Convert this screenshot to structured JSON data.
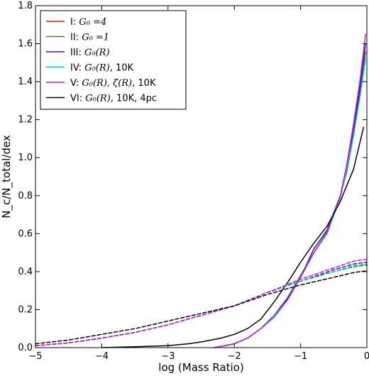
{
  "chart_data": {
    "type": "line",
    "xlabel": "log (Mass Ratio)",
    "ylabel": "N_c/N_total/dex",
    "xlim": [
      -5,
      0
    ],
    "ylim": [
      0,
      1.8
    ],
    "xticks": [
      -5,
      -4,
      -3,
      -2,
      -1,
      0
    ],
    "yticks": [
      0.0,
      0.2,
      0.4,
      0.6,
      0.8,
      1.0,
      1.2,
      1.4,
      1.6,
      1.8
    ],
    "xtick_labels": [
      "−5",
      "−4",
      "−3",
      "−2",
      "−1",
      "0"
    ],
    "ytick_labels": [
      "0.0",
      "0.2",
      "0.4",
      "0.6",
      "0.8",
      "1.0",
      "1.2",
      "1.4",
      "1.6",
      "1.8"
    ],
    "grid": false,
    "legend_position": "top-left",
    "series": [
      {
        "name": "I: G_0 =4",
        "legend": {
          "pre": "I: ",
          "math": "G₀ =4",
          "post": ""
        },
        "color": "#e41a1c",
        "style": "solid",
        "x": [
          -2.3,
          -2.0,
          -1.8,
          -1.6,
          -1.4,
          -1.2,
          -1.0,
          -0.8,
          -0.6,
          -0.4,
          -0.3,
          -0.2,
          -0.1,
          -0.02
        ],
        "y": [
          0.0,
          0.02,
          0.05,
          0.1,
          0.17,
          0.25,
          0.38,
          0.5,
          0.61,
          0.8,
          0.95,
          1.15,
          1.38,
          1.55
        ]
      },
      {
        "name": "II: G_0 =1",
        "legend": {
          "pre": "II: ",
          "math": "G₀ =1",
          "post": ""
        },
        "color": "#2e8b2e",
        "style": "solid",
        "x": [
          -2.3,
          -2.0,
          -1.8,
          -1.6,
          -1.4,
          -1.2,
          -1.0,
          -0.8,
          -0.6,
          -0.4,
          -0.3,
          -0.2,
          -0.1,
          -0.02
        ],
        "y": [
          0.0,
          0.02,
          0.05,
          0.1,
          0.17,
          0.26,
          0.38,
          0.5,
          0.61,
          0.8,
          0.93,
          1.12,
          1.35,
          1.56
        ]
      },
      {
        "name": "III: G_0(R)",
        "legend": {
          "pre": "III: ",
          "math": "G₀(R)",
          "post": ""
        },
        "color": "#2222aa",
        "style": "solid",
        "x": [
          -2.3,
          -2.0,
          -1.8,
          -1.6,
          -1.4,
          -1.2,
          -1.0,
          -0.8,
          -0.6,
          -0.4,
          -0.3,
          -0.2,
          -0.1,
          -0.02
        ],
        "y": [
          0.0,
          0.02,
          0.05,
          0.1,
          0.17,
          0.26,
          0.37,
          0.52,
          0.62,
          0.8,
          0.96,
          1.15,
          1.38,
          1.6
        ]
      },
      {
        "name": "IV: G_0(R), 10K",
        "legend": {
          "pre": "IV: ",
          "math": "G₀(R)",
          "post": ", 10K"
        },
        "color": "#20b5c0",
        "style": "solid",
        "x": [
          -2.3,
          -2.0,
          -1.8,
          -1.6,
          -1.4,
          -1.2,
          -1.0,
          -0.8,
          -0.6,
          -0.4,
          -0.3,
          -0.2,
          -0.1,
          -0.02
        ],
        "y": [
          0.0,
          0.02,
          0.05,
          0.1,
          0.17,
          0.25,
          0.37,
          0.5,
          0.6,
          0.79,
          0.94,
          1.12,
          1.33,
          1.52
        ]
      },
      {
        "name": "V: G_0(R), ζ(R), 10K",
        "legend": {
          "pre": "V: ",
          "math": "G₀(R), ζ(R)",
          "post": ", 10K"
        },
        "color": "#c020c0",
        "style": "solid",
        "x": [
          -2.3,
          -2.0,
          -1.8,
          -1.6,
          -1.4,
          -1.2,
          -1.0,
          -0.8,
          -0.6,
          -0.4,
          -0.3,
          -0.2,
          -0.1,
          -0.02
        ],
        "y": [
          0.0,
          0.02,
          0.05,
          0.1,
          0.16,
          0.25,
          0.37,
          0.5,
          0.61,
          0.8,
          0.97,
          1.18,
          1.42,
          1.65
        ]
      },
      {
        "name": "VI: G_0(R), 10K, 4pc",
        "legend": {
          "pre": "VI: ",
          "math": "G₀(R)",
          "post": ", 10K, 4pc"
        },
        "color": "#000000",
        "style": "solid",
        "x": [
          -4.0,
          -3.5,
          -3.0,
          -2.7,
          -2.5,
          -2.2,
          -2.0,
          -1.8,
          -1.6,
          -1.4,
          -1.2,
          -1.0,
          -0.8,
          -0.6,
          -0.4,
          -0.2,
          -0.05
        ],
        "y": [
          0.0,
          0.005,
          0.01,
          0.02,
          0.03,
          0.05,
          0.07,
          0.1,
          0.15,
          0.24,
          0.34,
          0.45,
          0.55,
          0.64,
          0.77,
          0.94,
          1.16
        ]
      },
      {
        "name": "I (dashed)",
        "color": "#e41a1c",
        "style": "dashed",
        "x": [
          -5.0,
          -4.5,
          -4.0,
          -3.5,
          -3.0,
          -2.5,
          -2.0,
          -1.5,
          -1.0,
          -0.5,
          -0.2,
          0.0
        ],
        "y": [
          0.01,
          0.025,
          0.05,
          0.08,
          0.12,
          0.17,
          0.22,
          0.29,
          0.35,
          0.4,
          0.43,
          0.44
        ]
      },
      {
        "name": "II (dashed)",
        "color": "#2e8b2e",
        "style": "dashed",
        "x": [
          -5.0,
          -4.5,
          -4.0,
          -3.5,
          -3.0,
          -2.5,
          -2.0,
          -1.5,
          -1.0,
          -0.5,
          -0.2,
          0.0
        ],
        "y": [
          0.01,
          0.025,
          0.05,
          0.08,
          0.12,
          0.17,
          0.22,
          0.29,
          0.35,
          0.4,
          0.425,
          0.435
        ]
      },
      {
        "name": "III (dashed)",
        "color": "#2222aa",
        "style": "dashed",
        "x": [
          -5.0,
          -4.5,
          -4.0,
          -3.5,
          -3.0,
          -2.5,
          -2.0,
          -1.5,
          -1.0,
          -0.5,
          -0.2,
          0.0
        ],
        "y": [
          0.01,
          0.025,
          0.05,
          0.08,
          0.12,
          0.17,
          0.22,
          0.29,
          0.35,
          0.41,
          0.44,
          0.45
        ]
      },
      {
        "name": "IV (dashed)",
        "color": "#20b5c0",
        "style": "dashed",
        "x": [
          -5.0,
          -4.5,
          -4.0,
          -3.5,
          -3.0,
          -2.5,
          -2.0,
          -1.5,
          -1.0,
          -0.5,
          -0.2,
          0.0
        ],
        "y": [
          0.01,
          0.025,
          0.05,
          0.08,
          0.12,
          0.17,
          0.22,
          0.29,
          0.35,
          0.4,
          0.43,
          0.44
        ]
      },
      {
        "name": "V (dashed)",
        "color": "#c020c0",
        "style": "dashed",
        "x": [
          -5.0,
          -4.5,
          -4.0,
          -3.5,
          -3.0,
          -2.5,
          -2.0,
          -1.5,
          -1.0,
          -0.5,
          -0.2,
          0.0
        ],
        "y": [
          0.01,
          0.025,
          0.05,
          0.08,
          0.12,
          0.17,
          0.22,
          0.29,
          0.36,
          0.42,
          0.455,
          0.465
        ]
      },
      {
        "name": "VI (dashed)",
        "color": "#000000",
        "style": "dashed",
        "x": [
          -5.0,
          -4.5,
          -4.0,
          -3.5,
          -3.0,
          -2.5,
          -2.0,
          -1.5,
          -1.0,
          -0.5,
          -0.2,
          0.0
        ],
        "y": [
          0.02,
          0.04,
          0.07,
          0.1,
          0.14,
          0.18,
          0.22,
          0.28,
          0.33,
          0.37,
          0.395,
          0.405
        ]
      }
    ]
  }
}
